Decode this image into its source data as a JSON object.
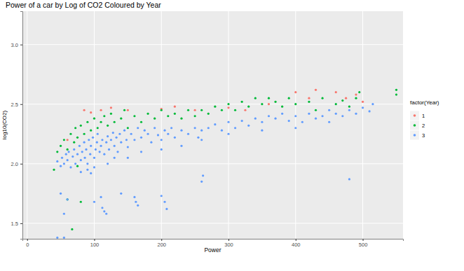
{
  "chart_data": {
    "type": "scatter",
    "title": "Power of a car by Log of CO2 Coloured by Year",
    "x_label": "Power",
    "y_label": "log10(CO2)",
    "legend_title": "factor(Year)",
    "legend": "right",
    "grid": true,
    "marker": "circle",
    "xlim": [
      -7,
      560
    ],
    "ylim": [
      1.37,
      3.28
    ],
    "xticks": [
      0,
      100,
      200,
      300,
      400,
      500
    ],
    "yticks": [
      1.5,
      {
        "value": 2,
        "label": "2.0"
      },
      2.5,
      {
        "value": 3,
        "label": "3.0"
      }
    ],
    "series": [
      {
        "name": "1",
        "color": "#F8766D",
        "x": [
          60,
          85,
          95,
          110,
          125,
          150,
          200,
          220,
          250,
          300,
          325,
          360,
          400,
          420,
          430,
          460,
          475,
          490,
          500
        ],
        "values": [
          2.2,
          2.45,
          2.43,
          2.45,
          2.47,
          2.45,
          2.46,
          2.48,
          2.45,
          2.47,
          2.45,
          2.5,
          2.6,
          2.55,
          2.62,
          2.6,
          2.55,
          2.58,
          2.52
        ]
      },
      {
        "name": "2",
        "color": "#00BA38",
        "x": [
          40,
          45,
          50,
          55,
          60,
          65,
          67,
          70,
          72,
          75,
          80,
          85,
          90,
          95,
          100,
          105,
          110,
          115,
          120,
          125,
          130,
          140,
          145,
          150,
          160,
          170,
          180,
          190,
          200,
          210,
          220,
          230,
          240,
          250,
          260,
          270,
          280,
          290,
          300,
          310,
          320,
          330,
          340,
          350,
          360,
          370,
          380,
          390,
          400,
          420,
          430,
          440,
          460,
          470,
          480,
          490,
          495,
          550,
          550,
          60,
          75,
          80
        ],
        "values": [
          1.95,
          2.1,
          2.15,
          2.2,
          2.12,
          2.25,
          1.45,
          2.18,
          2.3,
          2.22,
          2.32,
          2.25,
          2.35,
          2.28,
          2.38,
          2.3,
          2.35,
          2.4,
          2.32,
          2.42,
          2.35,
          2.38,
          2.45,
          2.3,
          2.4,
          2.35,
          2.42,
          2.38,
          2.45,
          2.4,
          2.42,
          2.38,
          2.45,
          2.4,
          2.45,
          2.42,
          2.48,
          2.45,
          2.5,
          2.45,
          2.52,
          2.48,
          2.55,
          2.5,
          2.55,
          2.52,
          2.48,
          2.55,
          2.5,
          2.52,
          2.45,
          2.55,
          2.5,
          2.53,
          2.48,
          2.55,
          2.6,
          2.62,
          2.58,
          1.7,
          1.98,
          1.68
        ]
      },
      {
        "name": "3",
        "color": "#619CFF",
        "x": [
          45,
          50,
          52,
          55,
          58,
          60,
          62,
          65,
          68,
          70,
          72,
          75,
          78,
          80,
          82,
          85,
          86,
          88,
          90,
          92,
          94,
          95,
          98,
          100,
          102,
          104,
          105,
          108,
          110,
          112,
          115,
          118,
          120,
          122,
          125,
          128,
          130,
          133,
          135,
          138,
          140,
          145,
          148,
          150,
          155,
          160,
          165,
          170,
          175,
          180,
          185,
          190,
          195,
          200,
          205,
          210,
          215,
          220,
          230,
          240,
          250,
          255,
          260,
          270,
          280,
          290,
          300,
          310,
          320,
          330,
          340,
          350,
          360,
          370,
          380,
          390,
          400,
          410,
          420,
          430,
          440,
          450,
          460,
          470,
          480,
          490,
          500,
          510,
          515,
          50,
          55,
          60,
          100,
          110,
          112,
          115,
          118,
          140,
          160,
          162,
          165,
          200,
          205,
          208,
          260,
          262,
          480,
          45,
          55,
          90,
          95,
          100,
          120,
          80,
          130,
          150,
          170,
          200,
          230,
          260,
          300,
          350,
          400,
          450
        ],
        "values": [
          2.02,
          1.98,
          2.05,
          2.0,
          2.08,
          2.03,
          2.1,
          1.97,
          2.06,
          2.12,
          2.0,
          2.08,
          2.15,
          2.03,
          2.1,
          2.18,
          2.05,
          2.12,
          2.0,
          2.2,
          2.08,
          2.15,
          2.22,
          2.05,
          2.12,
          2.18,
          2.25,
          2.1,
          2.15,
          2.2,
          2.08,
          2.18,
          2.23,
          2.12,
          2.2,
          2.26,
          2.15,
          2.22,
          2.1,
          2.25,
          2.18,
          2.28,
          2.2,
          2.14,
          2.25,
          2.2,
          2.3,
          2.22,
          2.28,
          2.25,
          2.18,
          2.3,
          2.24,
          2.2,
          2.28,
          2.25,
          2.3,
          2.22,
          2.28,
          2.25,
          2.3,
          2.22,
          2.28,
          2.3,
          2.33,
          2.28,
          2.35,
          2.3,
          2.36,
          2.32,
          2.38,
          2.35,
          2.4,
          2.38,
          2.42,
          2.36,
          2.4,
          2.35,
          2.42,
          2.38,
          2.4,
          2.45,
          2.42,
          2.4,
          2.45,
          2.42,
          2.47,
          2.44,
          2.5,
          1.75,
          1.58,
          1.7,
          1.68,
          1.72,
          1.63,
          1.6,
          1.58,
          1.75,
          1.72,
          1.68,
          1.65,
          1.73,
          1.68,
          1.62,
          1.85,
          1.9,
          1.87,
          1.38,
          1.38,
          1.95,
          1.92,
          1.97,
          2.0,
          1.93,
          2.05,
          2.05,
          2.1,
          2.12,
          2.15,
          2.2,
          2.25,
          2.28,
          2.3,
          2.35
        ]
      }
    ]
  }
}
